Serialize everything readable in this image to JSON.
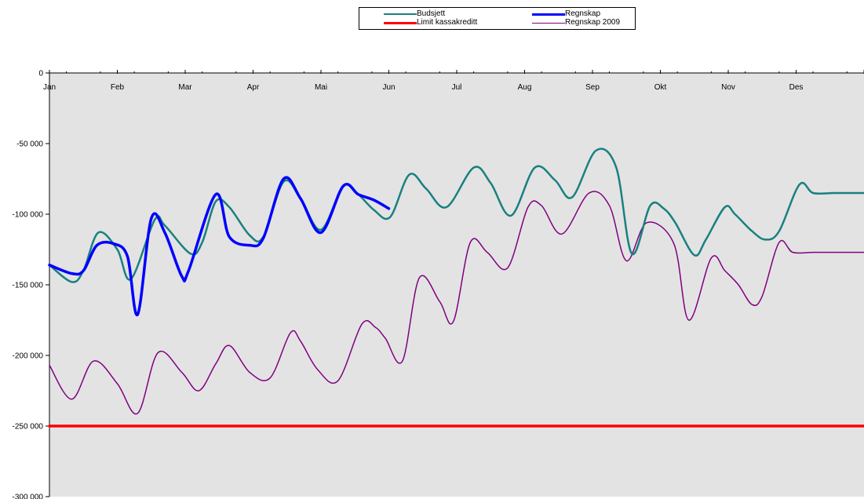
{
  "chart_data": {
    "type": "line",
    "title": "",
    "xlabel": "",
    "ylabel": "",
    "ylim": [
      -300000,
      0
    ],
    "yticks": [
      0,
      -50000,
      -100000,
      -150000,
      -200000,
      -250000,
      -300000
    ],
    "ytick_labels": [
      "0",
      "-50 000",
      "-100 000",
      "-150 000",
      "-200 000",
      "-250 000",
      "-300 000"
    ],
    "xlim": [
      0,
      12
    ],
    "categories": [
      "Jan",
      "Feb",
      "Mar",
      "Apr",
      "Mai",
      "Jun",
      "Jul",
      "Aug",
      "Sep",
      "Okt",
      "Nov",
      "Des"
    ],
    "grid": false,
    "legend_position": "top-center",
    "plot_background": "#e3e3e3",
    "series": [
      {
        "name": "Budsjett",
        "color": "#1a8080",
        "stroke_width": 2.5,
        "x": [
          0,
          0.33,
          0.5,
          0.72,
          1.0,
          1.2,
          1.55,
          1.7,
          2.08,
          2.25,
          2.45,
          2.65,
          2.95,
          3.15,
          3.45,
          3.7,
          4.0,
          4.33,
          4.55,
          4.78,
          5.02,
          5.3,
          5.55,
          5.85,
          6.25,
          6.5,
          6.8,
          7.15,
          7.45,
          7.7,
          8.05,
          8.35,
          8.58,
          8.85,
          9.05,
          9.22,
          9.5,
          9.67,
          9.95,
          10.1,
          10.35,
          10.55,
          10.75,
          11.05,
          11.25,
          11.55,
          11.75,
          12.0
        ],
        "y": [
          -136000,
          -148000,
          -140000,
          -113000,
          -125000,
          -146000,
          -104000,
          -108000,
          -128000,
          -120000,
          -91000,
          -95000,
          -115000,
          -116000,
          -77000,
          -89000,
          -111000,
          -80000,
          -86000,
          -97000,
          -102000,
          -72000,
          -82000,
          -95000,
          -67000,
          -78000,
          -101000,
          -67000,
          -76000,
          -88000,
          -55000,
          -67000,
          -128000,
          -94000,
          -96000,
          -106000,
          -129000,
          -118000,
          -95000,
          -100000,
          -112000,
          -118000,
          -112000,
          -79000,
          -85000,
          -85000,
          -85000,
          -85000
        ]
      },
      {
        "name": "Regnskap",
        "color": "#0000ff",
        "stroke_width": 3.5,
        "x": [
          0,
          0.33,
          0.5,
          0.7,
          0.95,
          1.15,
          1.3,
          1.5,
          1.7,
          1.95,
          2.05,
          2.45,
          2.65,
          2.95,
          3.15,
          3.45,
          3.7,
          4.0,
          4.33,
          4.55,
          4.78,
          5.0
        ],
        "y": [
          -136000,
          -142000,
          -140000,
          -122000,
          -121000,
          -130000,
          -171000,
          -103000,
          -113000,
          -144000,
          -140000,
          -86000,
          -116000,
          -122000,
          -117000,
          -75000,
          -89000,
          -113000,
          -80000,
          -86000,
          -90000,
          -96000
        ]
      },
      {
        "name": "Limit kassakreditt",
        "color": "#ff0000",
        "stroke_width": 3.5,
        "x": [
          0,
          12
        ],
        "y": [
          -250000,
          -250000
        ]
      },
      {
        "name": "Regnskap 2009",
        "color": "#800080",
        "stroke_width": 1.5,
        "x": [
          0,
          0.33,
          0.65,
          1.0,
          1.3,
          1.6,
          1.95,
          2.2,
          2.45,
          2.65,
          2.95,
          3.25,
          3.55,
          3.7,
          3.95,
          4.25,
          4.6,
          4.8,
          4.95,
          5.2,
          5.45,
          5.75,
          5.95,
          6.2,
          6.45,
          6.75,
          7.05,
          7.25,
          7.55,
          7.95,
          8.25,
          8.5,
          8.8,
          9.2,
          9.42,
          9.75,
          9.95,
          10.15,
          10.35,
          10.5,
          10.75,
          10.95,
          11.25,
          11.45,
          11.75,
          12.0
        ],
        "y": [
          -207000,
          -231000,
          -204000,
          -220000,
          -241000,
          -198000,
          -212000,
          -225000,
          -206000,
          -193000,
          -212000,
          -216000,
          -184000,
          -190000,
          -210000,
          -218000,
          -178000,
          -180000,
          -188000,
          -204000,
          -145000,
          -162000,
          -176000,
          -120000,
          -127000,
          -138000,
          -95000,
          -94000,
          -114000,
          -85000,
          -94000,
          -133000,
          -106000,
          -121000,
          -175000,
          -131000,
          -140000,
          -150000,
          -164000,
          -158000,
          -120000,
          -127000,
          -127000,
          -127000,
          -127000,
          -127000
        ]
      }
    ]
  }
}
